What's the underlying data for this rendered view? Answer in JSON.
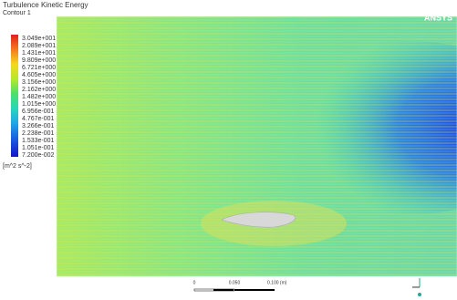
{
  "header": {
    "title": "Turbulence Kinetic Energy",
    "subtitle": "Contour 1",
    "brand": "ANSYS"
  },
  "legend": {
    "labels": [
      "3.049e+001",
      "2.089e+001",
      "1.431e+001",
      "9.809e+000",
      "6.721e+000",
      "4.605e+000",
      "3.156e+000",
      "2.162e+000",
      "1.482e+000",
      "1.015e+000",
      "6.956e-001",
      "4.767e-001",
      "3.266e-001",
      "2.238e-001",
      "1.533e-001",
      "1.051e-001",
      "7.200e-002"
    ],
    "unit": "[m^2 s^-2]"
  },
  "scale_bar": {
    "labels": [
      "0",
      "0.050",
      "0.100 (m)"
    ]
  }
}
